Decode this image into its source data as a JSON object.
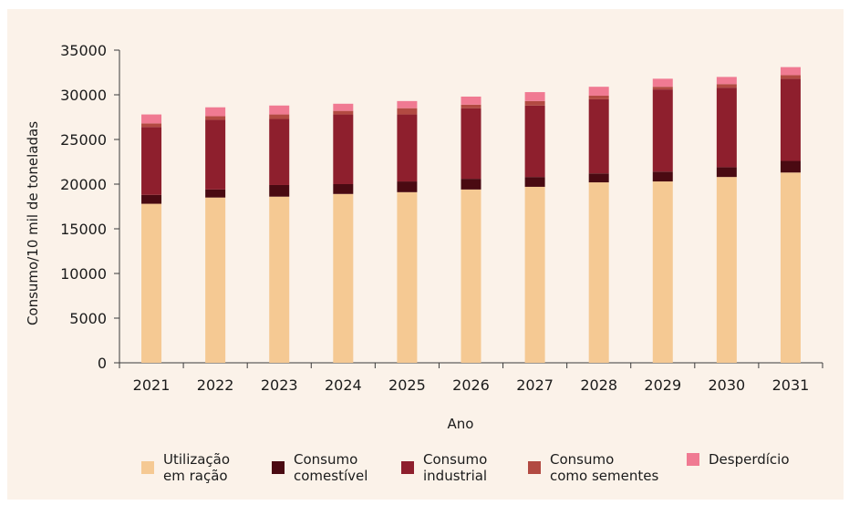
{
  "chart_data": {
    "type": "bar",
    "stacked": true,
    "title": "",
    "xlabel": "Ano",
    "ylabel": "Consumo/10 mil de toneladas",
    "ylim": [
      0,
      35000
    ],
    "yticks": [
      0,
      5000,
      10000,
      15000,
      20000,
      25000,
      30000,
      35000
    ],
    "grid": false,
    "legend_position": "bottom",
    "categories": [
      "2021",
      "2022",
      "2023",
      "2024",
      "2025",
      "2026",
      "2027",
      "2028",
      "2029",
      "2030",
      "2031"
    ],
    "series": [
      {
        "name": "Utilização\nem ração",
        "color": "#f5c993",
        "values": [
          17800,
          18500,
          18600,
          18900,
          19100,
          19400,
          19700,
          20200,
          20300,
          20800,
          21300
        ]
      },
      {
        "name": "Consumo\ncomestível",
        "color": "#4a0a12",
        "values": [
          1000,
          900,
          1300,
          1100,
          1200,
          1200,
          1100,
          1000,
          1100,
          1100,
          1300
        ]
      },
      {
        "name": "Consumo\nindustrial",
        "color": "#8e1f2d",
        "values": [
          7600,
          7800,
          7400,
          7800,
          7500,
          7900,
          8000,
          8300,
          9200,
          8900,
          9200
        ]
      },
      {
        "name": "Consumo\ncomo sementes",
        "color": "#b24a42",
        "values": [
          400,
          400,
          500,
          400,
          700,
          400,
          500,
          400,
          300,
          400,
          400
        ]
      },
      {
        "name": "Desperdício",
        "color": "#f07a92",
        "values": [
          1000,
          1000,
          1000,
          800,
          800,
          900,
          1000,
          1000,
          900,
          800,
          900
        ]
      }
    ]
  }
}
